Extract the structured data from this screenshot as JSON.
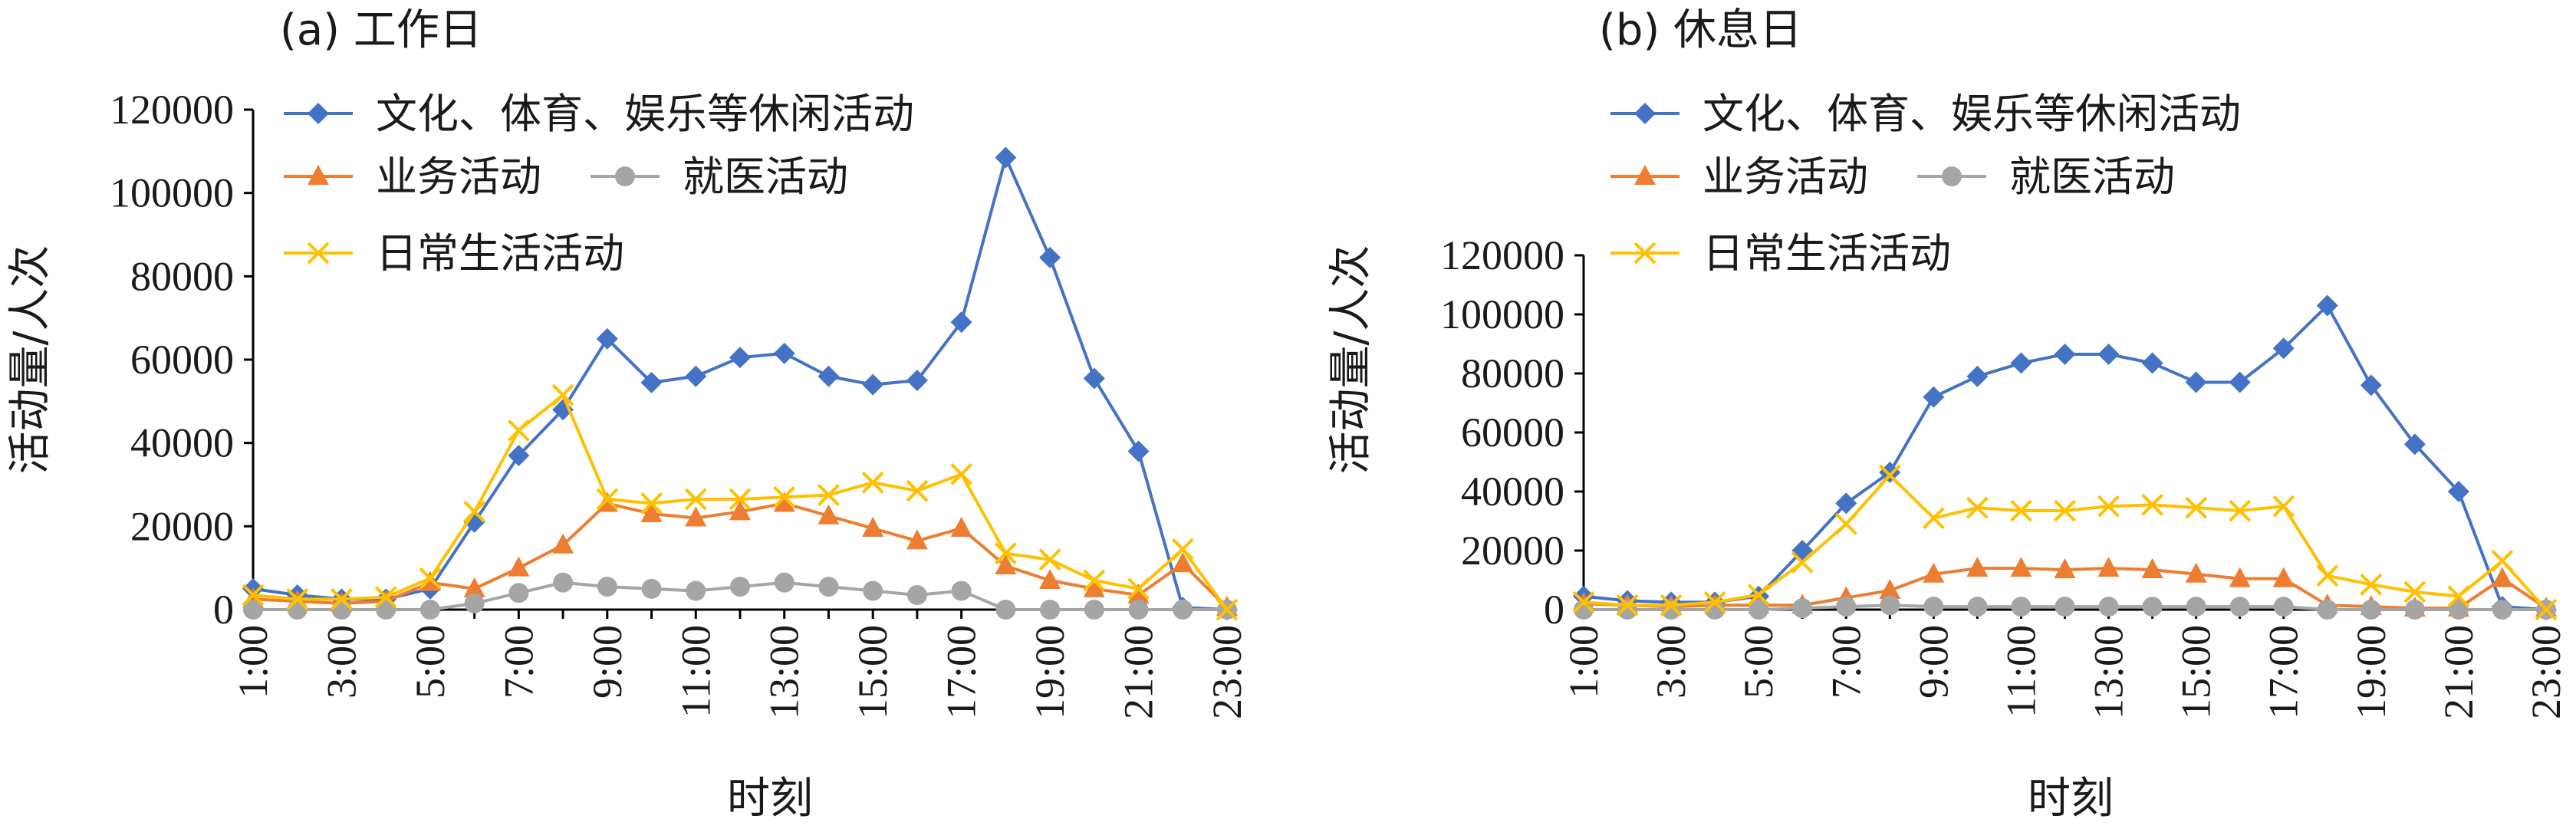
{
  "colors": {
    "culture": "#4472C4",
    "business": "#ED7D31",
    "medical": "#A5A5A5",
    "daily": "#FFC000"
  },
  "chart_data": [
    {
      "type": "line",
      "title": "(a) 工作日",
      "xlabel": "时刻",
      "ylabel": "活动量/人次",
      "ylim": [
        0,
        120000
      ],
      "yticks": [
        0,
        20000,
        40000,
        60000,
        80000,
        100000,
        120000
      ],
      "ytick_labels": [
        "0",
        "20000",
        "40000",
        "60000",
        "80000",
        "100000",
        "120000"
      ],
      "x": [
        "1:00",
        "2:00",
        "3:00",
        "4:00",
        "5:00",
        "6:00",
        "7:00",
        "8:00",
        "9:00",
        "10:00",
        "11:00",
        "12:00",
        "13:00",
        "14:00",
        "15:00",
        "16:00",
        "17:00",
        "18:00",
        "19:00",
        "20:00",
        "21:00",
        "22:00",
        "23:00"
      ],
      "xtick_labels": [
        "1:00",
        "3:00",
        "5:00",
        "7:00",
        "9:00",
        "11:00",
        "13:00",
        "15:00",
        "17:00",
        "19:00",
        "21:00",
        "23:00"
      ],
      "legend_position": "top-left",
      "series": [
        {
          "key": "culture",
          "name": "文化、体育、娱乐等休闲活动",
          "marker": "diamond",
          "values": [
            5000,
            3500,
            2500,
            2500,
            5000,
            21000,
            37000,
            48000,
            65000,
            54500,
            56000,
            60500,
            61500,
            56000,
            54000,
            55000,
            69000,
            108500,
            84500,
            55500,
            38000,
            500,
            0
          ]
        },
        {
          "key": "business",
          "name": "业务活动",
          "marker": "triangle",
          "values": [
            2500,
            2000,
            1500,
            2000,
            6500,
            5000,
            10000,
            15500,
            25500,
            23000,
            22000,
            23500,
            25500,
            22500,
            19500,
            16500,
            19500,
            10500,
            7000,
            5000,
            3500,
            11000,
            500
          ]
        },
        {
          "key": "medical",
          "name": "就医活动",
          "marker": "circle",
          "values": [
            0,
            0,
            0,
            0,
            0,
            1500,
            4000,
            6500,
            5500,
            5000,
            4500,
            5500,
            6500,
            5500,
            4500,
            3500,
            4500,
            0,
            0,
            0,
            0,
            0,
            0
          ]
        },
        {
          "key": "daily",
          "name": "日常生活活动",
          "marker": "x",
          "values": [
            3500,
            2500,
            2500,
            3000,
            7500,
            23500,
            43000,
            51500,
            26500,
            25500,
            26500,
            26500,
            27000,
            27500,
            30500,
            28500,
            32500,
            13500,
            12000,
            7000,
            5000,
            14500,
            0
          ]
        }
      ]
    },
    {
      "type": "line",
      "title": "(b) 休息日",
      "xlabel": "时刻",
      "ylabel": "活动量/人次",
      "ylim": [
        0,
        120000
      ],
      "yticks": [
        0,
        20000,
        40000,
        60000,
        80000,
        100000,
        120000
      ],
      "ytick_labels": [
        "0",
        "20000",
        "40000",
        "60000",
        "80000",
        "100000",
        "120000"
      ],
      "x": [
        "1:00",
        "2:00",
        "3:00",
        "4:00",
        "5:00",
        "6:00",
        "7:00",
        "8:00",
        "9:00",
        "10:00",
        "11:00",
        "12:00",
        "13:00",
        "14:00",
        "15:00",
        "16:00",
        "17:00",
        "18:00",
        "19:00",
        "20:00",
        "21:00",
        "22:00",
        "23:00"
      ],
      "xtick_labels": [
        "1:00",
        "3:00",
        "5:00",
        "7:00",
        "9:00",
        "11:00",
        "13:00",
        "15:00",
        "17:00",
        "19:00",
        "21:00",
        "23:00"
      ],
      "legend_position": "top-left",
      "series": [
        {
          "key": "culture",
          "name": "文化、体育、娱乐等休闲活动",
          "marker": "diamond",
          "values": [
            4500,
            3000,
            2500,
            2500,
            4500,
            20000,
            36000,
            46500,
            72000,
            79000,
            83500,
            86500,
            86500,
            83500,
            77000,
            77000,
            88500,
            103000,
            76000,
            56000,
            40000,
            1000,
            0
          ]
        },
        {
          "key": "business",
          "name": "业务活动",
          "marker": "triangle",
          "values": [
            2000,
            1500,
            1000,
            1500,
            1500,
            1500,
            4000,
            6500,
            12000,
            14000,
            14000,
            13500,
            14000,
            13500,
            12000,
            10500,
            10500,
            1500,
            1000,
            500,
            500,
            10500,
            500
          ]
        },
        {
          "key": "medical",
          "name": "就医活动",
          "marker": "circle",
          "values": [
            0,
            0,
            0,
            0,
            0,
            500,
            1000,
            1500,
            1000,
            1000,
            1000,
            1000,
            1000,
            1000,
            1000,
            1000,
            1000,
            0,
            0,
            0,
            0,
            0,
            0
          ]
        },
        {
          "key": "daily",
          "name": "日常生活活动",
          "marker": "x",
          "values": [
            2500,
            1500,
            1500,
            2500,
            5000,
            16000,
            29000,
            45500,
            31000,
            34500,
            33500,
            33500,
            35000,
            35500,
            34500,
            33500,
            35000,
            11500,
            8500,
            6000,
            4500,
            16500,
            0
          ]
        }
      ]
    }
  ]
}
